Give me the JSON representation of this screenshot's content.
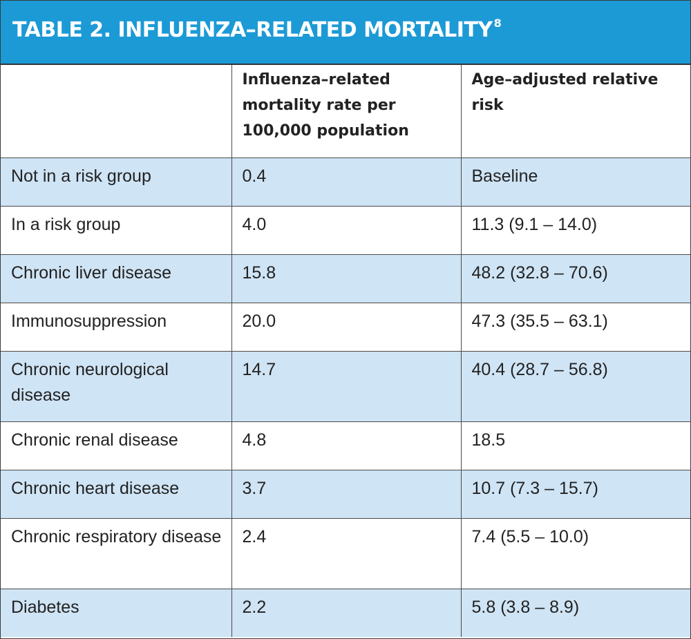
{
  "title": {
    "text": "TABLE 2. INFLUENZA–RELATED MORTALITY",
    "superscript": "8"
  },
  "columns": [
    "",
    "Influenza–related mortality rate per 100,000 population",
    "Age–adjusted relative risk"
  ],
  "rows": [
    {
      "group": "Not in a risk group",
      "rate": "0.4",
      "risk": "Baseline"
    },
    {
      "group": "In a risk group",
      "rate": "4.0",
      "risk": "11.3 (9.1 – 14.0)"
    },
    {
      "group": "Chronic liver disease",
      "rate": "15.8",
      "risk": "48.2 (32.8 – 70.6)"
    },
    {
      "group": "Immunosuppression",
      "rate": "20.0",
      "risk": "47.3 (35.5 – 63.1)"
    },
    {
      "group": "Chronic neurological disease",
      "rate": "14.7",
      "risk": "40.4 (28.7 – 56.8)"
    },
    {
      "group": "Chronic renal disease",
      "rate": "4.8",
      "risk": "18.5"
    },
    {
      "group": "Chronic heart disease",
      "rate": "3.7",
      "risk": "10.7 (7.3 – 15.7)"
    },
    {
      "group": "Chronic respiratory disease",
      "rate": "2.4",
      "risk": "7.4 (5.5 – 10.0)"
    },
    {
      "group": "Diabetes",
      "rate": "2.2",
      "risk": "5.8 (3.8 – 8.9)"
    }
  ],
  "colors": {
    "title_bar": "#1c9ad6",
    "shaded_row": "#cfe4f5",
    "border": "#4a4a4a"
  }
}
